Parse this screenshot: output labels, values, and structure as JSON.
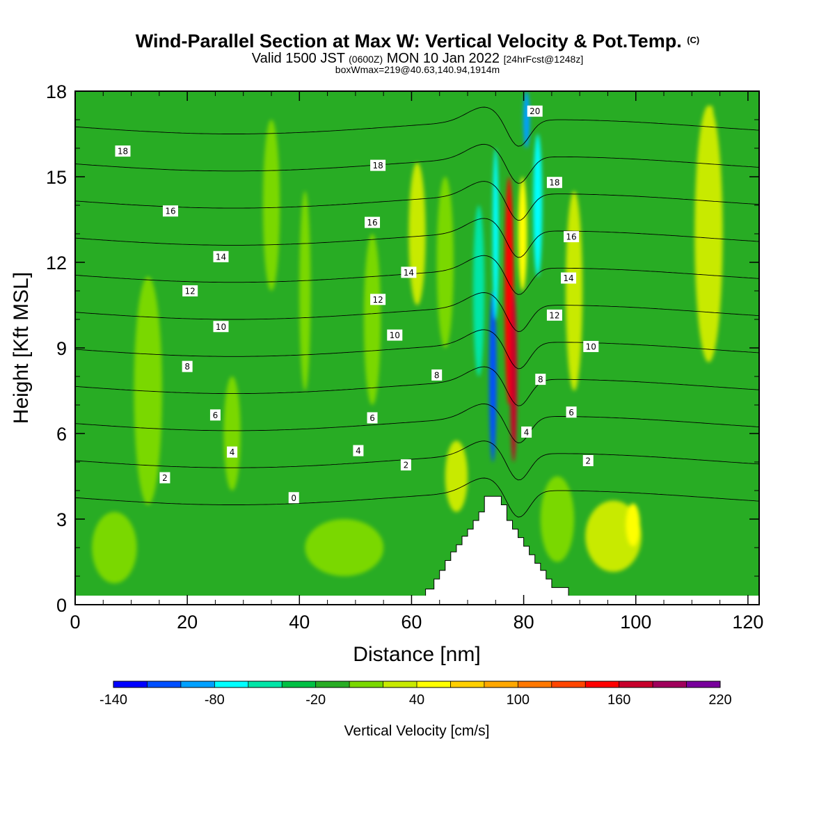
{
  "header": {
    "title": "Wind-Parallel Section at Max W: Vertical Velocity & Pot.Temp.",
    "title_mark": "(C)",
    "valid_prefix": "Valid 1500 JST",
    "valid_z": "(0600Z)",
    "valid_date": "MON 10 Jan 2022",
    "forecast": "[24hrFcst@1248z]",
    "box_info": "boxWmax=219@40.63,140.94,1914m"
  },
  "chart_data": {
    "type": "heatmap",
    "xlabel": "Distance [nm]",
    "ylabel": "Height [Kft MSL]",
    "xlim": [
      0,
      122
    ],
    "ylim": [
      0,
      18
    ],
    "x_ticks": [
      "0",
      "20",
      "40",
      "60",
      "80",
      "100",
      "120"
    ],
    "y_ticks": [
      "0",
      "3",
      "6",
      "9",
      "12",
      "15",
      "18"
    ],
    "terrain_profile": [
      [
        62.5,
        0
      ],
      [
        62.5,
        0.55
      ],
      [
        64,
        0.55
      ],
      [
        64,
        0.9
      ],
      [
        65,
        0.9
      ],
      [
        65,
        1.2
      ],
      [
        66,
        1.2
      ],
      [
        66,
        1.55
      ],
      [
        67,
        1.55
      ],
      [
        67,
        1.85
      ],
      [
        68,
        1.85
      ],
      [
        68,
        2.1
      ],
      [
        69,
        2.1
      ],
      [
        69,
        2.4
      ],
      [
        70,
        2.4
      ],
      [
        70,
        2.65
      ],
      [
        71,
        2.65
      ],
      [
        71,
        2.95
      ],
      [
        72,
        2.95
      ],
      [
        72,
        3.25
      ],
      [
        73,
        3.25
      ],
      [
        73,
        3.8
      ],
      [
        76,
        3.8
      ],
      [
        76,
        3.5
      ],
      [
        77,
        3.5
      ],
      [
        77,
        2.95
      ],
      [
        78,
        2.95
      ],
      [
        78,
        2.65
      ],
      [
        79,
        2.65
      ],
      [
        79,
        2.35
      ],
      [
        80,
        2.35
      ],
      [
        80,
        2.05
      ],
      [
        81,
        2.05
      ],
      [
        81,
        1.75
      ],
      [
        82,
        1.75
      ],
      [
        82,
        1.45
      ],
      [
        83,
        1.45
      ],
      [
        83,
        1.2
      ],
      [
        84,
        1.2
      ],
      [
        84,
        0.9
      ],
      [
        85,
        0.9
      ],
      [
        85,
        0.6
      ],
      [
        88,
        0.6
      ],
      [
        88,
        0.3
      ],
      [
        89,
        0.3
      ],
      [
        89,
        0
      ]
    ],
    "vertical_velocity": {
      "background": -20,
      "features": [
        {
          "x": 13,
          "y": 7.5,
          "w": 5,
          "h": 8,
          "value": 0
        },
        {
          "x": 7,
          "y": 2,
          "w": 8,
          "h": 2.5,
          "value": 0
        },
        {
          "x": 28,
          "y": 6,
          "w": 3,
          "h": 4,
          "value": 0
        },
        {
          "x": 35,
          "y": 14,
          "w": 3,
          "h": 6,
          "value": 0
        },
        {
          "x": 41,
          "y": 11,
          "w": 2,
          "h": 7,
          "value": 0
        },
        {
          "x": 53,
          "y": 10,
          "w": 3,
          "h": 6,
          "value": 0
        },
        {
          "x": 61,
          "y": 13,
          "w": 3,
          "h": 5,
          "value": 20
        },
        {
          "x": 66,
          "y": 12,
          "w": 3,
          "h": 6,
          "value": 0
        },
        {
          "x": 48,
          "y": 2,
          "w": 14,
          "h": 2,
          "value": 0
        },
        {
          "x": 68,
          "y": 4.5,
          "w": 4,
          "h": 2.5,
          "value": 20
        },
        {
          "x": 96,
          "y": 2.4,
          "w": 10,
          "h": 2.5,
          "value": 20
        },
        {
          "x": 99.5,
          "y": 2.8,
          "w": 2.5,
          "h": 1.5,
          "value": 40
        },
        {
          "x": 113,
          "y": 13,
          "w": 5,
          "h": 9,
          "value": 20
        },
        {
          "x": 113.5,
          "y": 14,
          "w": 2,
          "h": 7,
          "value": 30
        },
        {
          "x": 89,
          "y": 11,
          "w": 3,
          "h": 7,
          "value": 20
        },
        {
          "x": 86,
          "y": 3,
          "w": 6,
          "h": 3,
          "value": 0
        },
        {
          "x": 72,
          "y": 11,
          "w": 2,
          "h": 6,
          "value": -60
        },
        {
          "x": 74.5,
          "y": 8,
          "w": 1.3,
          "h": 6,
          "value": -110
        },
        {
          "x": 75,
          "y": 13,
          "w": 1.1,
          "h": 6,
          "value": -80
        },
        {
          "x": 82.5,
          "y": 14,
          "w": 1.6,
          "h": 5,
          "value": -80
        },
        {
          "x": 80.5,
          "y": 17,
          "w": 1.2,
          "h": 2,
          "value": -90
        },
        {
          "x": 77.4,
          "y": 11,
          "w": 1.6,
          "h": 8,
          "value": 150
        },
        {
          "x": 78.2,
          "y": 8,
          "w": 1.2,
          "h": 6,
          "value": 170
        },
        {
          "x": 79.8,
          "y": 13,
          "w": 1.6,
          "h": 4,
          "value": 50
        }
      ]
    },
    "potential_temperature_contours": [
      {
        "label": "0",
        "labels": [
          [
            39,
            3.75
          ]
        ]
      },
      {
        "label": "2",
        "labels": [
          [
            16,
            4.45
          ],
          [
            59,
            4.9
          ],
          [
            91.5,
            5.05
          ]
        ]
      },
      {
        "label": "4",
        "labels": [
          [
            28,
            5.35
          ],
          [
            50.5,
            5.4
          ],
          [
            80.5,
            6.05
          ]
        ]
      },
      {
        "label": "6",
        "labels": [
          [
            25,
            6.65
          ],
          [
            53,
            6.55
          ],
          [
            88.5,
            6.75
          ]
        ]
      },
      {
        "label": "8",
        "labels": [
          [
            20,
            8.35
          ],
          [
            64.5,
            8.05
          ],
          [
            83,
            7.9
          ]
        ]
      },
      {
        "label": "10",
        "labels": [
          [
            26,
            9.75
          ],
          [
            57,
            9.45
          ],
          [
            92,
            9.05
          ]
        ]
      },
      {
        "label": "12",
        "labels": [
          [
            20.5,
            11.0
          ],
          [
            54,
            10.7
          ],
          [
            85.5,
            10.15
          ]
        ]
      },
      {
        "label": "14",
        "labels": [
          [
            26,
            12.2
          ],
          [
            59.5,
            11.65
          ],
          [
            88,
            11.45
          ]
        ]
      },
      {
        "label": "16",
        "labels": [
          [
            17,
            13.8
          ],
          [
            53,
            13.4
          ],
          [
            88.5,
            12.9
          ]
        ]
      },
      {
        "label": "18",
        "labels": [
          [
            8.5,
            15.9
          ],
          [
            54,
            15.4
          ],
          [
            85.5,
            14.8
          ]
        ]
      },
      {
        "label": "20",
        "labels": [
          [
            82,
            17.3
          ]
        ]
      }
    ],
    "colorbar": {
      "label": "Vertical Velocity [cm/s]",
      "min": -140,
      "max": 220,
      "tick_labels": [
        "-140",
        "-80",
        "-20",
        "40",
        "100",
        "160",
        "220"
      ],
      "colors": [
        "#0000ff",
        "#0050ff",
        "#00a0ff",
        "#00ffff",
        "#00e6a8",
        "#00c044",
        "#28ac24",
        "#7ad800",
        "#c8ea00",
        "#ffff00",
        "#ffd000",
        "#ffa800",
        "#ff7800",
        "#ff4600",
        "#ff0000",
        "#c8002c",
        "#a0005c",
        "#78009c"
      ]
    }
  }
}
